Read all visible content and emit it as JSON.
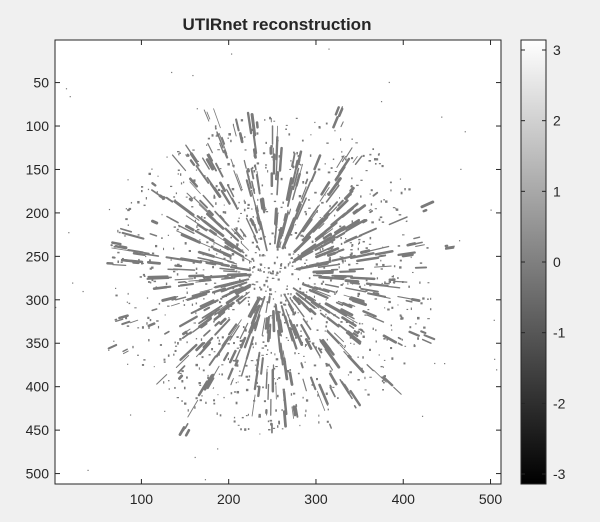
{
  "chart_data": {
    "type": "heatmap",
    "title": "UTIRnet reconstruction",
    "xlabel": "",
    "ylabel": "",
    "xlim": [
      1,
      512
    ],
    "ylim": [
      1,
      512
    ],
    "y_reversed": true,
    "x_ticks": [
      "100",
      "200",
      "300",
      "400",
      "500"
    ],
    "y_ticks": [
      "50",
      "100",
      "150",
      "200",
      "250",
      "300",
      "350",
      "400",
      "450",
      "500"
    ],
    "colorbar": {
      "colormap": "gray",
      "clim": [
        -3.1416,
        3.1416
      ],
      "ticks": [
        "3",
        "2",
        "1",
        "0",
        "-1",
        "-2",
        "-3"
      ]
    },
    "background_value": 3.1416,
    "feature_value": 0.0,
    "structure": {
      "center": [
        250,
        270
      ],
      "radius": 185
    }
  },
  "colors": {
    "figure_bg": "#f0f0f0",
    "axes_bg": "#ffffff",
    "axis_line": "#262626",
    "feature_gray": "#7a7a7a"
  }
}
